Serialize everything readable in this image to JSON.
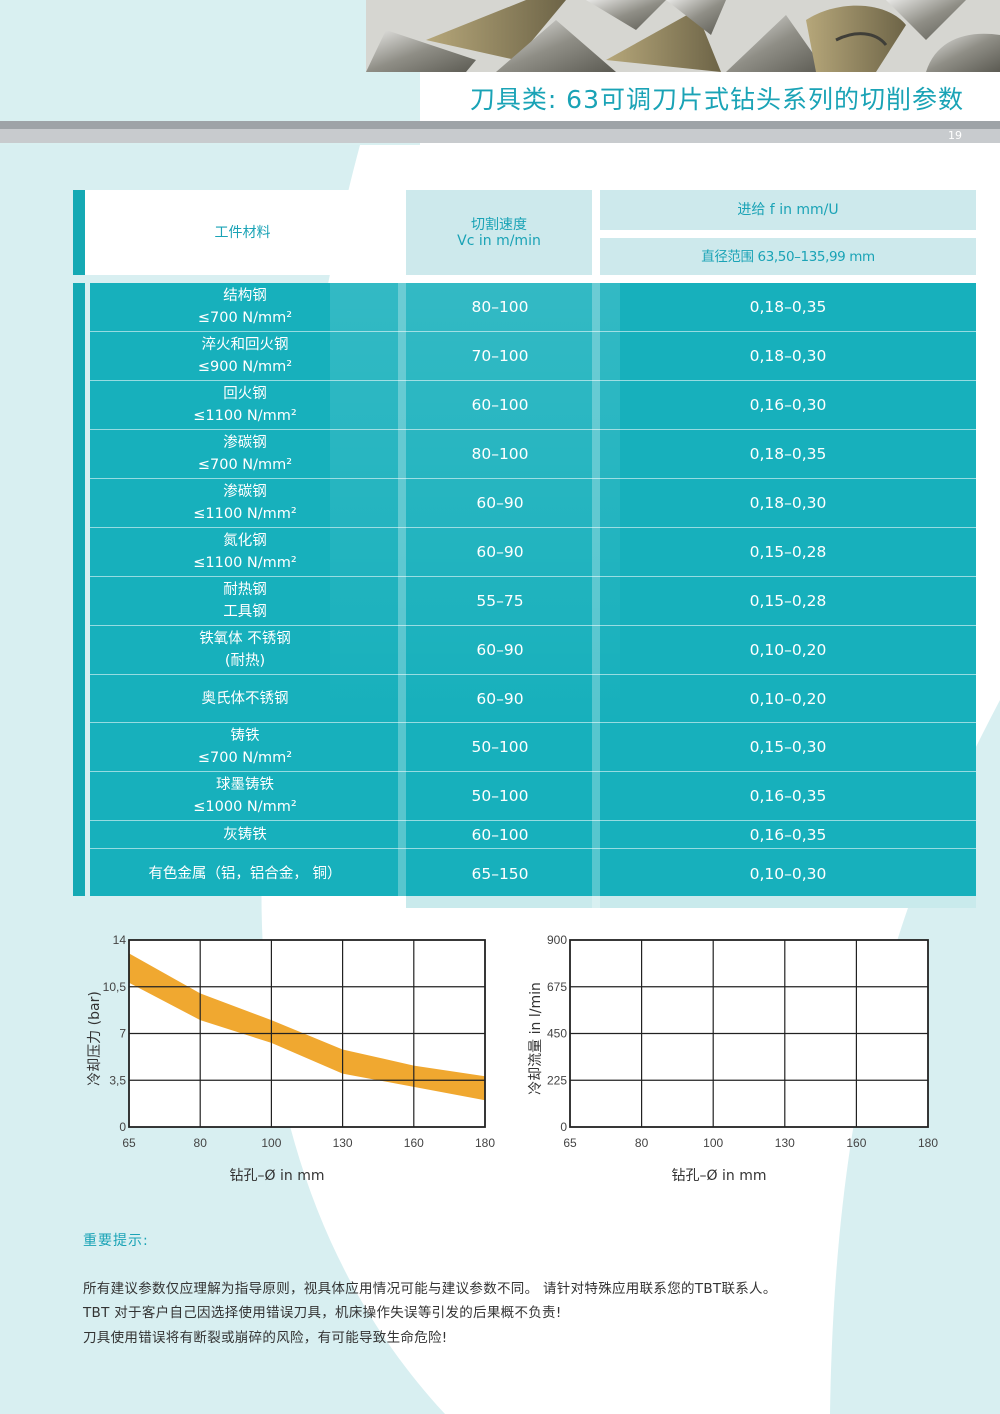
{
  "header": {
    "title": "刀具类: 63可调刀片式钻头系列的切削参数",
    "page_number": "19"
  },
  "table": {
    "headers": {
      "material": "工件材料",
      "speed_line1": "切割速度",
      "speed_line2": "Vc in m/min",
      "feed": "进给 f in mm/U",
      "diameter": "直径范围 63,50–135,99 mm"
    },
    "rows": [
      {
        "line1": "结构钢",
        "line2": "≤700 N/mm²",
        "vc": "80–100",
        "f": "0,18–0,35"
      },
      {
        "line1": "淬火和回火钢",
        "line2": "≤900 N/mm²",
        "vc": "70–100",
        "f": "0,18–0,30"
      },
      {
        "line1": "回火钢",
        "line2": "≤1100 N/mm²",
        "vc": "60–100",
        "f": "0,16–0,30"
      },
      {
        "line1": "渗碳钢",
        "line2": "≤700 N/mm²",
        "vc": "80–100",
        "f": "0,18–0,35"
      },
      {
        "line1": "渗碳钢",
        "line2": "≤1100 N/mm²",
        "vc": "60–90",
        "f": "0,18–0,30"
      },
      {
        "line1": "氮化钢",
        "line2": "≤1100 N/mm²",
        "vc": "60–90",
        "f": "0,15–0,28"
      },
      {
        "line1": "耐热钢",
        "line2": "工具钢",
        "vc": "55–75",
        "f": "0,15–0,28"
      },
      {
        "line1": "铁氧体 不锈钢",
        "line2": "(耐热)",
        "vc": "60–90",
        "f": "0,10–0,20"
      },
      {
        "line1": "奥氏体不锈钢",
        "line2": "",
        "vc": "60–90",
        "f": "0,10–0,20"
      },
      {
        "line1": "铸铁",
        "line2": "≤700 N/mm²",
        "vc": "50–100",
        "f": "0,15–0,30"
      },
      {
        "line1": "球墨铸铁",
        "line2": "≤1000 N/mm²",
        "vc": "50–100",
        "f": "0,16–0,35"
      },
      {
        "line1": "灰铸铁",
        "line2": "",
        "vc": "60–100",
        "f": "0,16–0,35"
      },
      {
        "line1": "有色金属（铝，铝合金， 铜）",
        "line2": "",
        "vc": "65–150",
        "f": "0,10–0,30"
      }
    ]
  },
  "charts": {
    "pressure": {
      "ylabel": "冷却压力 (bar)",
      "xlabel": "钻孔–Ø in mm",
      "yticks": [
        "0",
        "3,5",
        "7",
        "10,5",
        "14"
      ],
      "xticks": [
        "65",
        "80",
        "100",
        "130",
        "160",
        "180"
      ]
    },
    "flow": {
      "ylabel": "冷却流量 in l/min",
      "xlabel": "钻孔–Ø in mm",
      "yticks": [
        "0",
        "225",
        "450",
        "675",
        "900"
      ],
      "xticks": [
        "65",
        "80",
        "100",
        "130",
        "160",
        "180"
      ]
    }
  },
  "chart_data": [
    {
      "type": "area",
      "xlabel": "钻孔–Ø in mm",
      "ylabel": "冷却压力 (bar)",
      "x_ticks": [
        65,
        80,
        100,
        130,
        160,
        180
      ],
      "ylim": [
        0,
        14
      ],
      "grid": true,
      "band_color": "#f0a830",
      "series": [
        {
          "x": [
            65,
            80,
            100,
            130,
            160,
            180
          ],
          "upper": [
            13.0,
            10.0,
            8.0,
            5.8,
            4.6,
            3.8
          ],
          "lower": [
            10.8,
            8.0,
            6.3,
            4.0,
            3.0,
            2.0
          ]
        }
      ]
    },
    {
      "type": "area",
      "xlabel": "钻孔–Ø in mm",
      "ylabel": "冷却流量 in l/min",
      "x_ticks": [
        65,
        80,
        100,
        130,
        160,
        180
      ],
      "ylim": [
        0,
        900
      ],
      "grid": true,
      "series": []
    }
  ],
  "notes": {
    "title": "重要提示:",
    "lines": [
      "所有建议参数仅应理解为指导原则，视具体应用情况可能与建议参数不同。 请针对特殊应用联系您的TBT联系人。",
      "TBT 对于客户自己因选择使用错误刀具，机床操作失误等引发的后果概不负责!",
      "刀具使用错误将有断裂或崩碎的风险，有可能导致生命危险!"
    ]
  },
  "colors": {
    "accent": "#1aa3b6",
    "table_body": "#17b0bc",
    "header_tint": "#cde9ec",
    "bg_shape": "#d6eff0"
  }
}
